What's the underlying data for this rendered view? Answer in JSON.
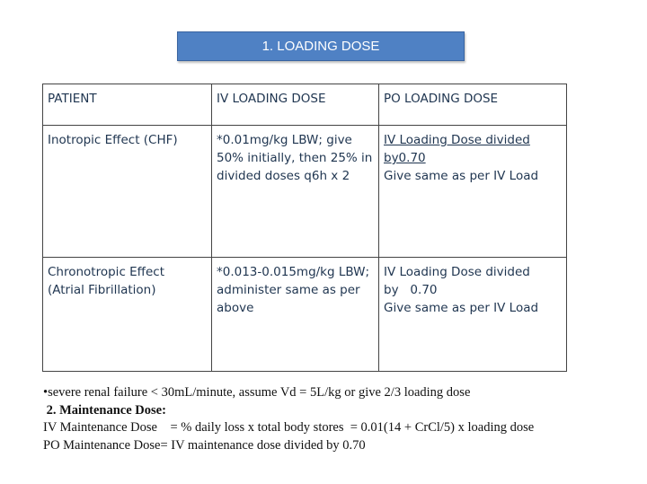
{
  "title": "1. LOADING DOSE",
  "table": {
    "headers": [
      "PATIENT",
      "IV LOADING DOSE",
      "PO LOADING DOSE"
    ],
    "rows": [
      {
        "patient": "Inotropic Effect (CHF)",
        "iv": [
          "*0.01mg/kg LBW; give",
          "50% initially, then 25% in",
          "divided doses q6h x 2"
        ],
        "po": [
          "IV Loading Dose divided",
          "by0.70",
          "Give same as per IV Load"
        ]
      },
      {
        "patient": [
          "Chronotropic Effect",
          "(Atrial Fibrillation)"
        ],
        "iv": [
          "*0.013-0.015mg/kg LBW;",
          "administer same as per",
          "above"
        ],
        "po": [
          "IV Loading Dose divided",
          "by   0.70",
          "Give same as per IV Load"
        ]
      }
    ]
  },
  "notes": {
    "renal": "•severe renal failure < 30mL/minute, assume Vd = 5L/kg or give 2/3 loading dose",
    "heading": " 2. Maintenance Dose:",
    "iv": "IV Maintenance Dose    = % daily loss x total body stores  = 0.01(14 + CrCl/5) x loading dose",
    "po": "PO Maintenance Dose= IV maintenance dose divided by 0.70"
  }
}
